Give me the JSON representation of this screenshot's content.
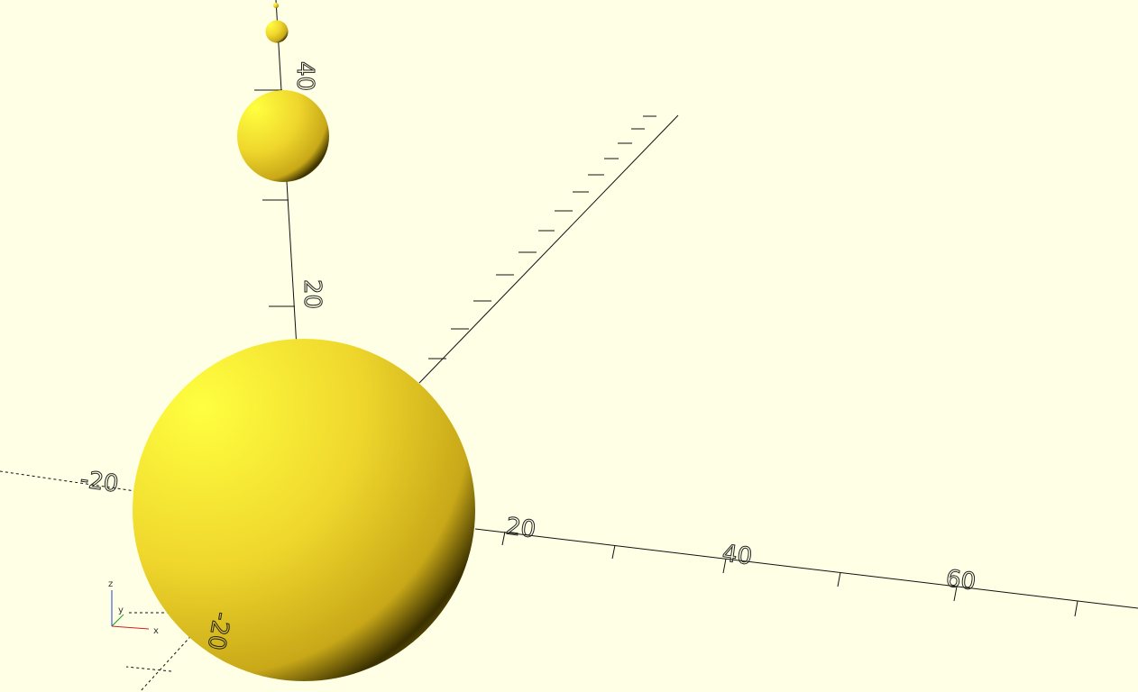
{
  "viewport": {
    "x_axis_labels": [
      "-20",
      "20",
      "40",
      "60"
    ],
    "z_axis_labels": [
      "20",
      "40"
    ],
    "y_axis_labels": [
      "-20"
    ]
  },
  "axis_indicator": {
    "x": "x",
    "y": "y",
    "z": "z"
  }
}
